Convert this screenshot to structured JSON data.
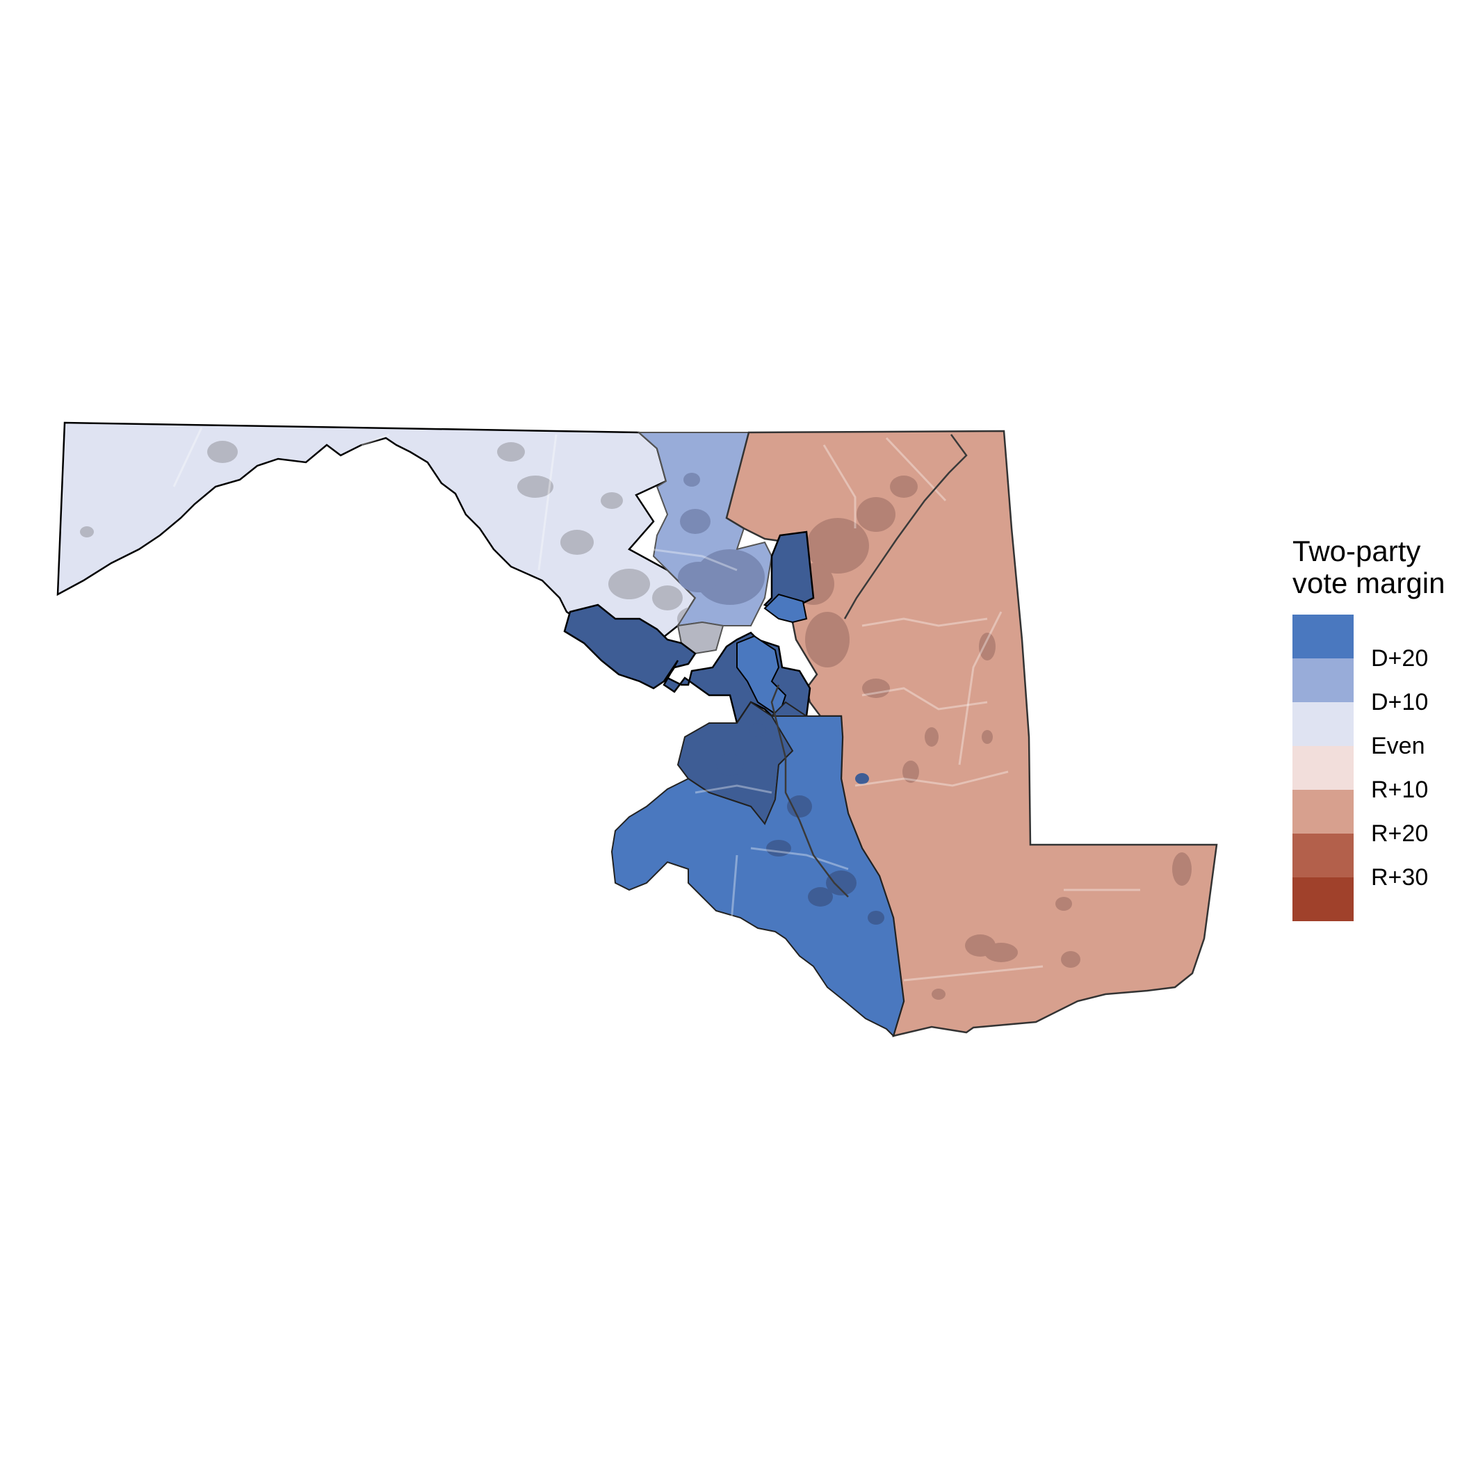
{
  "legend": {
    "title_line1": "Two-party",
    "title_line2": "vote margin",
    "swatches": [
      {
        "color": "#4a78bf"
      },
      {
        "color": "#98acd9"
      },
      {
        "color": "#dfe3f2"
      },
      {
        "color": "#f2dedb"
      },
      {
        "color": "#d7a08e"
      },
      {
        "color": "#b3604b"
      },
      {
        "color": "#a0412b"
      }
    ],
    "labels": [
      "D+20",
      "D+10",
      "Even",
      "R+10",
      "R+20",
      "R+30"
    ]
  },
  "map_colors": {
    "d_safe": "#4a78bf",
    "d_dark": "#3e5d95",
    "d_lean": "#98acd9",
    "d_lean_dark": "#7a8ab5",
    "even_blue": "#dfe3f2",
    "even_grey": "#b5b7c2",
    "r_lean": "#d7a08e",
    "r_lean_dark": "#b48275"
  }
}
